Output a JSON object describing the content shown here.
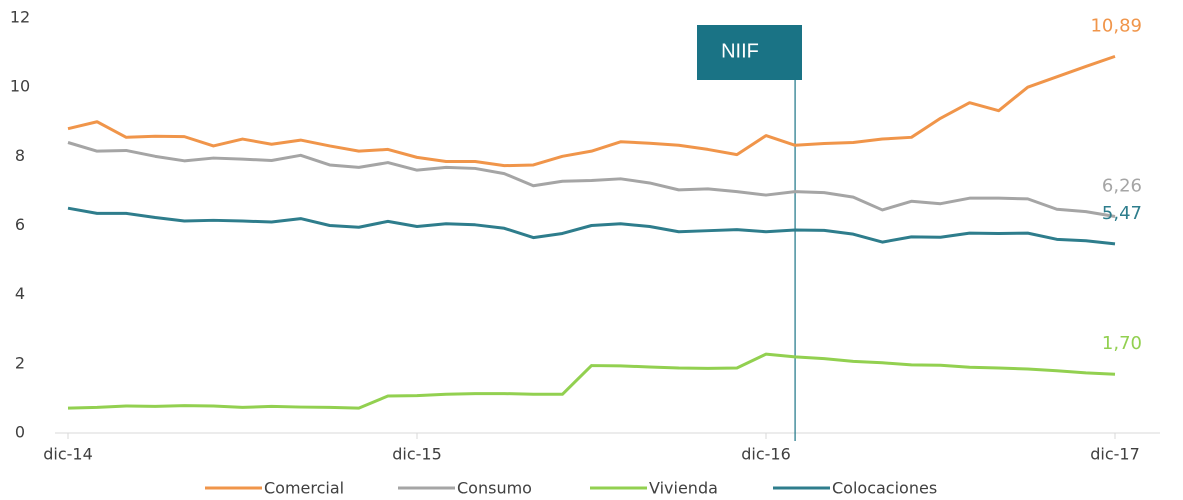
{
  "chart_data": {
    "type": "line",
    "categories": [
      "dic-14",
      null,
      null,
      null,
      null,
      null,
      null,
      null,
      null,
      null,
      null,
      null,
      "dic-15",
      null,
      null,
      null,
      null,
      null,
      null,
      null,
      null,
      null,
      null,
      null,
      "dic-16",
      null,
      null,
      null,
      null,
      null,
      null,
      null,
      null,
      null,
      null,
      null,
      "dic-17"
    ],
    "ylim": [
      0,
      12
    ],
    "yticks": [
      0,
      2,
      4,
      6,
      8,
      10,
      12
    ],
    "grid": false,
    "legend": "bottom",
    "series": [
      {
        "name": "Comercial",
        "color": "#f0954a",
        "values": [
          8.8,
          9.0,
          8.55,
          8.58,
          8.57,
          8.3,
          8.5,
          8.35,
          8.47,
          8.3,
          8.15,
          8.2,
          7.97,
          7.85,
          7.85,
          7.73,
          7.75,
          8.0,
          8.15,
          8.42,
          8.38,
          8.32,
          8.2,
          8.05,
          8.6,
          8.32,
          8.37,
          8.4,
          8.5,
          8.55,
          9.1,
          9.55,
          9.32,
          10.0,
          10.3,
          10.6,
          10.89
        ],
        "value_labels": [
          null,
          null,
          null,
          null,
          null,
          null,
          null,
          null,
          null,
          null,
          null,
          null,
          null,
          null,
          null,
          null,
          null,
          null,
          null,
          null,
          null,
          null,
          null,
          null,
          null,
          null,
          null,
          null,
          null,
          null,
          null,
          null,
          null,
          null,
          null,
          null,
          "10,89"
        ]
      },
      {
        "name": "Consumo",
        "color": "#a5a5a5",
        "values": [
          8.4,
          8.15,
          8.17,
          8.0,
          7.87,
          7.95,
          7.92,
          7.88,
          8.03,
          7.75,
          7.68,
          7.82,
          7.6,
          7.68,
          7.65,
          7.5,
          7.15,
          7.28,
          7.3,
          7.35,
          7.23,
          7.03,
          7.06,
          6.98,
          6.88,
          6.98,
          6.95,
          6.82,
          6.45,
          6.7,
          6.63,
          6.79,
          6.79,
          6.77,
          6.47,
          6.4,
          6.26
        ],
        "value_labels": [
          null,
          null,
          null,
          null,
          null,
          null,
          null,
          null,
          null,
          null,
          null,
          null,
          null,
          null,
          null,
          null,
          null,
          null,
          null,
          null,
          null,
          null,
          null,
          null,
          null,
          null,
          null,
          null,
          null,
          null,
          null,
          null,
          null,
          null,
          null,
          null,
          "6,26"
        ]
      },
      {
        "name": "Vivienda",
        "color": "#92d050",
        "values": [
          0.72,
          0.74,
          0.78,
          0.77,
          0.79,
          0.78,
          0.74,
          0.77,
          0.75,
          0.74,
          0.72,
          1.07,
          1.08,
          1.12,
          1.14,
          1.14,
          1.12,
          1.12,
          1.95,
          1.94,
          1.91,
          1.88,
          1.87,
          1.88,
          2.28,
          2.2,
          2.15,
          2.07,
          2.03,
          1.97,
          1.96,
          1.9,
          1.88,
          1.85,
          1.8,
          1.74,
          1.7
        ],
        "value_labels": [
          null,
          null,
          null,
          null,
          null,
          null,
          null,
          null,
          null,
          null,
          null,
          null,
          null,
          null,
          null,
          null,
          null,
          null,
          null,
          null,
          null,
          null,
          null,
          null,
          null,
          null,
          null,
          null,
          null,
          null,
          null,
          null,
          null,
          null,
          null,
          null,
          "1,70"
        ]
      },
      {
        "name": "Colocaciones",
        "color": "#2e7d8c",
        "values": [
          6.5,
          6.35,
          6.35,
          6.23,
          6.13,
          6.15,
          6.13,
          6.1,
          6.2,
          6.0,
          5.95,
          6.12,
          5.97,
          6.05,
          6.02,
          5.92,
          5.65,
          5.77,
          6.0,
          6.05,
          5.97,
          5.82,
          5.85,
          5.88,
          5.82,
          5.87,
          5.86,
          5.75,
          5.52,
          5.67,
          5.66,
          5.78,
          5.77,
          5.78,
          5.6,
          5.56,
          5.47
        ],
        "value_labels": [
          null,
          null,
          null,
          null,
          null,
          null,
          null,
          null,
          null,
          null,
          null,
          null,
          null,
          null,
          null,
          null,
          null,
          null,
          null,
          null,
          null,
          null,
          null,
          null,
          null,
          null,
          null,
          null,
          null,
          null,
          null,
          null,
          null,
          null,
          null,
          null,
          "5,47"
        ]
      }
    ],
    "annotation": {
      "label": "NIIF",
      "at": 25,
      "color": "#1a7385"
    }
  }
}
